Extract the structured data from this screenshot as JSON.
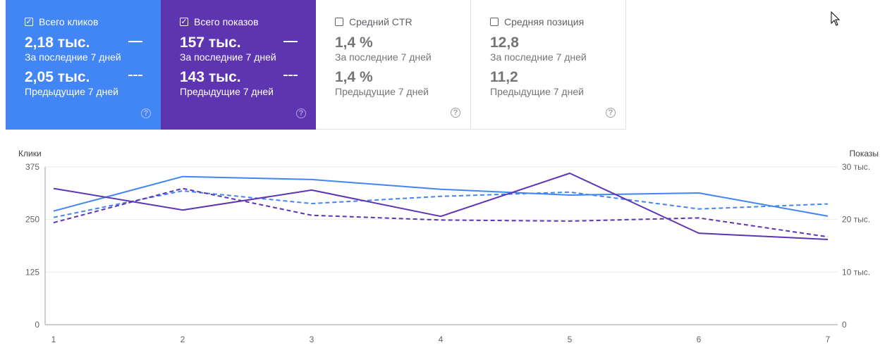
{
  "cards": [
    {
      "label": "Всего кликов",
      "checked": true,
      "current_value": "2,18 тыс.",
      "current_period": "За последние 7 дней",
      "previous_value": "2,05 тыс.",
      "previous_period": "Предыдущие 7 дней",
      "color": "#4285f4"
    },
    {
      "label": "Всего показов",
      "checked": true,
      "current_value": "157 тыс.",
      "current_period": "За последние 7 дней",
      "previous_value": "143 тыс.",
      "previous_period": "Предыдущие 7 дней",
      "color": "#5e35b1"
    },
    {
      "label": "Средний CTR",
      "checked": false,
      "current_value": "1,4 %",
      "current_period": "За последние 7 дней",
      "previous_value": "1,4 %",
      "previous_period": "Предыдущие 7 дней"
    },
    {
      "label": "Средняя позиция",
      "checked": false,
      "current_value": "12,8",
      "current_period": "За последние 7 дней",
      "previous_value": "11,2",
      "previous_period": "Предыдущие 7 дней"
    }
  ],
  "chart_data": {
    "type": "line",
    "x": [
      1,
      2,
      3,
      4,
      5,
      6,
      7
    ],
    "y_left_label": "Клики",
    "y_right_label": "Показы",
    "y_left_lim": [
      0,
      375
    ],
    "y_right_lim": [
      0,
      30000
    ],
    "y_left_ticks": [
      "0",
      "125",
      "250",
      "375"
    ],
    "y_right_ticks": [
      "0",
      "10 тыс.",
      "20 тыс.",
      "30 тыс."
    ],
    "x_ticks": [
      "1",
      "2",
      "3",
      "4",
      "5",
      "6",
      "7"
    ],
    "grid": true,
    "series": [
      {
        "axis": "left",
        "style": "solid",
        "color": "#4285f4",
        "values": [
          270,
          352,
          345,
          322,
          308,
          313,
          258
        ]
      },
      {
        "axis": "left",
        "style": "dashed",
        "color": "#4285f4",
        "values": [
          255,
          318,
          288,
          305,
          315,
          275,
          287
        ]
      },
      {
        "axis": "right",
        "style": "solid",
        "color": "#5e35b1",
        "values": [
          25900,
          21800,
          25600,
          20600,
          28800,
          17400,
          16200
        ]
      },
      {
        "axis": "right",
        "style": "dashed",
        "color": "#5e35b1",
        "values": [
          19400,
          25900,
          20800,
          19900,
          19700,
          20300,
          16700
        ]
      }
    ]
  }
}
